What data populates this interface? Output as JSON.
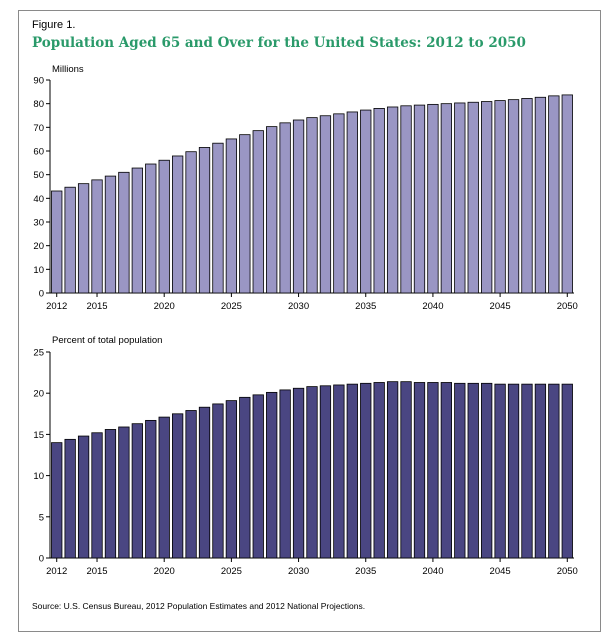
{
  "figure_label": "Figure 1.",
  "title": "Population Aged 65 and Over for the United States: 2012 to 2050",
  "source": "Source: U.S. Census Bureau, 2012 Population Estimates and 2012 National Projections.",
  "colors": {
    "title": "#2a9a6a",
    "top_bars": "#9a96c4",
    "bottom_bars": "#4a4682",
    "bar_outline": "#000000"
  },
  "chart_data": [
    {
      "type": "bar",
      "ylabel": "Millions",
      "ylim": [
        0,
        90
      ],
      "yticks": [
        0,
        10,
        20,
        30,
        40,
        50,
        60,
        70,
        80,
        90
      ],
      "xticks": [
        2012,
        2015,
        2020,
        2025,
        2030,
        2035,
        2040,
        2045,
        2050
      ],
      "grid": false,
      "categories": [
        2012,
        2013,
        2014,
        2015,
        2016,
        2017,
        2018,
        2019,
        2020,
        2021,
        2022,
        2023,
        2024,
        2025,
        2026,
        2027,
        2028,
        2029,
        2030,
        2031,
        2032,
        2033,
        2034,
        2035,
        2036,
        2037,
        2038,
        2039,
        2040,
        2041,
        2042,
        2043,
        2044,
        2045,
        2046,
        2047,
        2048,
        2049,
        2050
      ],
      "values": [
        43.1,
        44.7,
        46.2,
        47.8,
        49.4,
        51.0,
        52.8,
        54.5,
        56.1,
        57.9,
        59.7,
        61.5,
        63.3,
        65.1,
        66.9,
        68.6,
        70.3,
        71.9,
        73.1,
        74.1,
        74.9,
        75.7,
        76.5,
        77.3,
        78.0,
        78.6,
        79.1,
        79.4,
        79.7,
        80.0,
        80.3,
        80.6,
        80.9,
        81.3,
        81.7,
        82.2,
        82.7,
        83.3,
        83.7
      ]
    },
    {
      "type": "bar",
      "ylabel": "Percent of total population",
      "ylim": [
        0,
        25
      ],
      "yticks": [
        0,
        5,
        10,
        15,
        20,
        25
      ],
      "xticks": [
        2012,
        2015,
        2020,
        2025,
        2030,
        2035,
        2040,
        2045,
        2050
      ],
      "grid": false,
      "categories": [
        2012,
        2013,
        2014,
        2015,
        2016,
        2017,
        2018,
        2019,
        2020,
        2021,
        2022,
        2023,
        2024,
        2025,
        2026,
        2027,
        2028,
        2029,
        2030,
        2031,
        2032,
        2033,
        2034,
        2035,
        2036,
        2037,
        2038,
        2039,
        2040,
        2041,
        2042,
        2043,
        2044,
        2045,
        2046,
        2047,
        2048,
        2049,
        2050
      ],
      "values": [
        14.0,
        14.4,
        14.8,
        15.2,
        15.6,
        15.9,
        16.3,
        16.7,
        17.1,
        17.5,
        17.9,
        18.3,
        18.7,
        19.1,
        19.5,
        19.8,
        20.1,
        20.4,
        20.6,
        20.8,
        20.9,
        21.0,
        21.1,
        21.2,
        21.3,
        21.4,
        21.4,
        21.3,
        21.3,
        21.3,
        21.2,
        21.2,
        21.2,
        21.1,
        21.1,
        21.1,
        21.1,
        21.1,
        21.1
      ]
    }
  ]
}
